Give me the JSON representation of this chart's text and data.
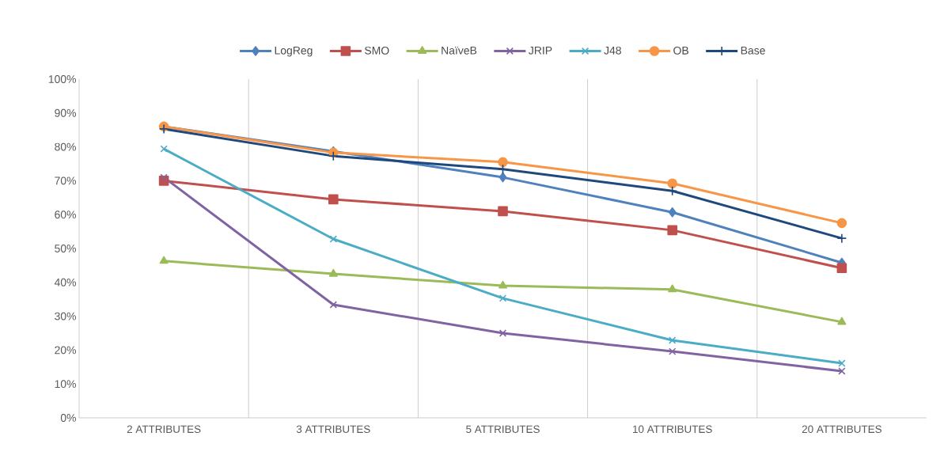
{
  "chart_data": {
    "type": "line",
    "categories": [
      "2 ATTRIBUTES",
      "3 ATTRIBUTES",
      "5 ATTRIBUTES",
      "10 ATTRIBUTES",
      "20 ATTRIBUTES"
    ],
    "series": [
      {
        "name": "LogReg",
        "color": "#4f81bd",
        "marker": "diamond",
        "values": [
          86,
          78.7,
          71,
          60.7,
          45.8
        ]
      },
      {
        "name": "SMO",
        "color": "#c0504d",
        "marker": "square",
        "values": [
          70,
          64.5,
          61,
          55.4,
          44.2
        ]
      },
      {
        "name": "NaïveB",
        "color": "#9bbb59",
        "marker": "triangle",
        "values": [
          46.3,
          42.5,
          39,
          37.9,
          28.3
        ]
      },
      {
        "name": "JRIP",
        "color": "#8064a2",
        "marker": "cross",
        "values": [
          71,
          33.4,
          25,
          19.6,
          13.8
        ]
      },
      {
        "name": "J48",
        "color": "#4bacc6",
        "marker": "cross",
        "values": [
          79.4,
          52.8,
          35.3,
          22.9,
          16.1
        ]
      },
      {
        "name": "OB",
        "color": "#f79646",
        "marker": "circle",
        "values": [
          86,
          78.3,
          75.5,
          69.2,
          57.5
        ]
      },
      {
        "name": "Base",
        "color": "#1f497d",
        "marker": "plus",
        "values": [
          85.3,
          77.3,
          73.4,
          67,
          53
        ]
      }
    ],
    "ylim": [
      0,
      100
    ],
    "yticks": [
      {
        "value": 0,
        "label": "0%"
      },
      {
        "value": 10,
        "label": "10%"
      },
      {
        "value": 20,
        "label": "20%"
      },
      {
        "value": 30,
        "label": "30%"
      },
      {
        "value": 40,
        "label": "40%"
      },
      {
        "value": 50,
        "label": "50%"
      },
      {
        "value": 60,
        "label": "60%"
      },
      {
        "value": 70,
        "label": "70%"
      },
      {
        "value": 80,
        "label": "80%"
      },
      {
        "value": 90,
        "label": "90%"
      },
      {
        "value": 100,
        "label": "100%"
      }
    ],
    "grid": "x",
    "legend": "top",
    "line_style": "solid"
  }
}
